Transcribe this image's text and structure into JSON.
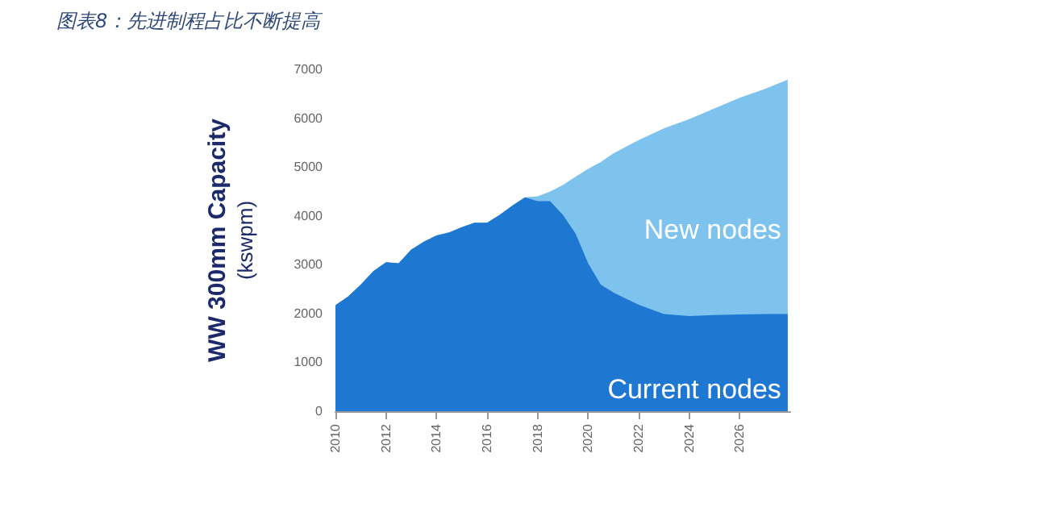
{
  "chart_data": {
    "type": "area",
    "title": "图表8：先进制程占比不断提高",
    "ylabel": "WW 300mm Capacity\n(kswpm)",
    "stacked": true,
    "legend": false,
    "grid": false,
    "x": [
      2010,
      2010.5,
      2011,
      2011.5,
      2012,
      2012.5,
      2013,
      2013.5,
      2014,
      2014.5,
      2015,
      2015.5,
      2016,
      2016.5,
      2017,
      2017.5,
      2018,
      2018.5,
      2019,
      2019.5,
      2020,
      2020.5,
      2021,
      2022,
      2023,
      2024,
      2025,
      2026,
      2027,
      2027.9
    ],
    "series": [
      {
        "name": "Current nodes",
        "color": "#1e78d2",
        "values": [
          2170,
          2350,
          2590,
          2870,
          3050,
          3030,
          3310,
          3470,
          3600,
          3660,
          3770,
          3860,
          3860,
          4020,
          4210,
          4380,
          4300,
          4300,
          4020,
          3640,
          3030,
          2590,
          2430,
          2180,
          1990,
          1950,
          1970,
          1980,
          1990,
          1990
        ]
      },
      {
        "name": "New nodes",
        "color": "#7ec2ee",
        "values": [
          0,
          0,
          0,
          0,
          0,
          0,
          0,
          0,
          0,
          0,
          0,
          0,
          0,
          0,
          0,
          0,
          100,
          200,
          610,
          1160,
          1930,
          2510,
          2850,
          3370,
          3800,
          4030,
          4230,
          4440,
          4610,
          4800
        ]
      }
    ],
    "xlim": [
      2010,
      2028
    ],
    "xticks": [
      2010,
      2012,
      2014,
      2016,
      2018,
      2020,
      2022,
      2024,
      2026
    ],
    "ylim": [
      0,
      7000
    ],
    "yticks": [
      0,
      1000,
      2000,
      3000,
      4000,
      5000,
      6000,
      7000
    ]
  }
}
